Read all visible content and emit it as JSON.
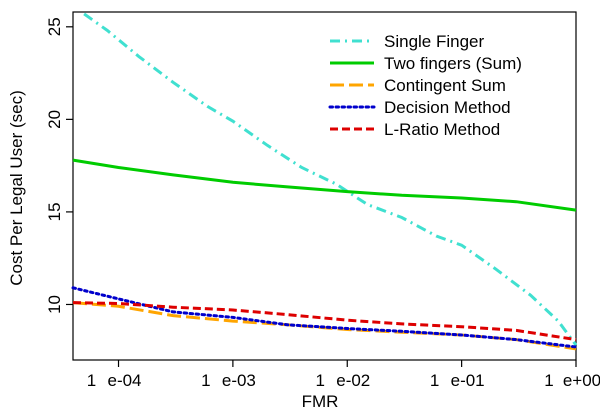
{
  "chart_data": {
    "type": "line",
    "title": "",
    "xlabel": "FMR",
    "ylabel": "Cost Per Legal User (sec)",
    "x_scale": "log10",
    "xlim": [
      4e-05,
      1
    ],
    "ylim": [
      7.0,
      25.8
    ],
    "x_ticks": [
      {
        "value": 0.0001,
        "label_a": "1",
        "label_b": "e-04"
      },
      {
        "value": 0.001,
        "label_a": "1",
        "label_b": "e-03"
      },
      {
        "value": 0.01,
        "label_a": "1",
        "label_b": "e-02"
      },
      {
        "value": 0.1,
        "label_a": "1",
        "label_b": "e-01"
      },
      {
        "value": 1,
        "label_a": "1",
        "label_b": "e+00"
      }
    ],
    "y_ticks": [
      {
        "value": 10,
        "label": "10"
      },
      {
        "value": 15,
        "label": "15"
      },
      {
        "value": 20,
        "label": "20"
      },
      {
        "value": 25,
        "label": "25"
      }
    ],
    "grid": false,
    "legend_position": "top-right",
    "series": [
      {
        "name": "Single Finger",
        "color": "#40E0D0",
        "dash": "dotdash",
        "x": [
          5e-05,
          8e-05,
          0.00015,
          0.0003,
          0.0006,
          0.001,
          0.002,
          0.004,
          0.008,
          0.015,
          0.03,
          0.06,
          0.1,
          0.2,
          0.4,
          0.7,
          1.0
        ],
        "y": [
          25.7,
          24.8,
          23.4,
          22.0,
          20.7,
          19.9,
          18.6,
          17.4,
          16.5,
          15.4,
          14.7,
          13.7,
          13.2,
          11.9,
          10.5,
          9.1,
          7.8
        ]
      },
      {
        "name": "Two fingers (Sum)",
        "color": "#00CC00",
        "dash": "solid",
        "x": [
          4e-05,
          0.0001,
          0.0003,
          0.001,
          0.003,
          0.01,
          0.03,
          0.1,
          0.3,
          1.0
        ],
        "y": [
          17.8,
          17.4,
          17.0,
          16.6,
          16.35,
          16.1,
          15.9,
          15.75,
          15.55,
          15.1
        ]
      },
      {
        "name": "Contingent Sum",
        "color": "#FFA500",
        "dash": "longdash",
        "x": [
          4e-05,
          0.0001,
          0.0003,
          0.001,
          0.003,
          0.01,
          0.03,
          0.1,
          0.3,
          1.0
        ],
        "y": [
          10.1,
          9.9,
          9.4,
          9.1,
          8.9,
          8.65,
          8.5,
          8.35,
          8.1,
          7.6
        ]
      },
      {
        "name": "Decision Method",
        "color": "#0000CC",
        "dash": "dotted",
        "x": [
          4e-05,
          0.0001,
          0.0003,
          0.001,
          0.003,
          0.01,
          0.03,
          0.1,
          0.3,
          1.0
        ],
        "y": [
          10.9,
          10.3,
          9.6,
          9.3,
          8.9,
          8.7,
          8.55,
          8.35,
          8.1,
          7.7
        ]
      },
      {
        "name": "L-Ratio Method",
        "color": "#DD0000",
        "dash": "dashed",
        "x": [
          4e-05,
          0.0001,
          0.0003,
          0.001,
          0.003,
          0.01,
          0.03,
          0.1,
          0.3,
          1.0
        ],
        "y": [
          10.1,
          10.05,
          9.85,
          9.7,
          9.45,
          9.15,
          8.95,
          8.8,
          8.6,
          8.1
        ]
      }
    ]
  }
}
